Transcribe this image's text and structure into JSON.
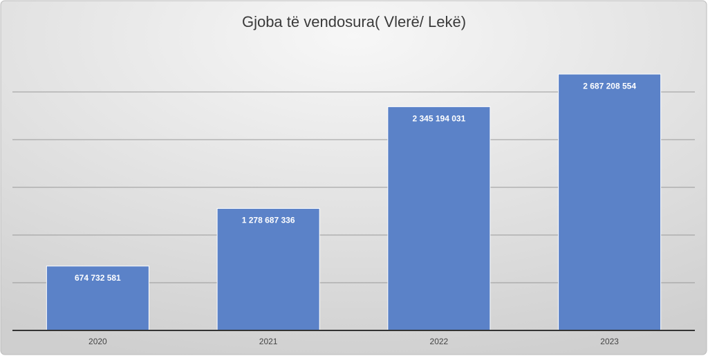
{
  "chart_data": {
    "type": "bar",
    "title": "Gjoba të vendosura( Vlerë/ Lekë)",
    "categories": [
      "2020",
      "2021",
      "2022",
      "2023"
    ],
    "values": [
      674732581,
      1278687336,
      2345194031,
      2687208554
    ],
    "value_labels": [
      "674 732 581",
      "1 278 687 336",
      "2 345 194 031",
      "2 687 208 554"
    ],
    "color": "#5b82c8",
    "ylim": [
      0,
      3000000000
    ],
    "yticks": [
      0,
      500000000,
      1000000000,
      1500000000,
      2000000000,
      2500000000
    ],
    "grid": true
  }
}
